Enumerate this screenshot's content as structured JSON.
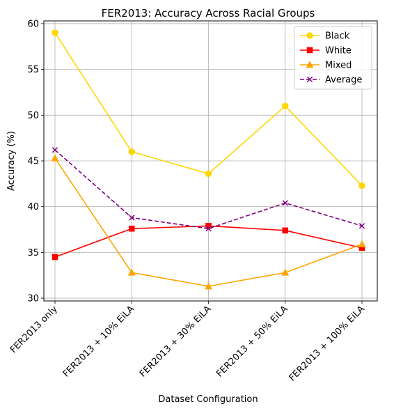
{
  "chart_data": {
    "type": "line",
    "title": "FER2013: Accuracy Across Racial Groups",
    "xlabel": "Dataset Configuration",
    "ylabel": "Accuracy (%)",
    "categories": [
      "FER2013 only",
      "FER2013 + 10% EiLA",
      "FER2013 + 30% EiLA",
      "FER2013 + 50% EiLA",
      "FER2013 + 100% EiLA"
    ],
    "ylim": [
      29.7,
      60.3
    ],
    "yticks": [
      30,
      35,
      40,
      45,
      50,
      55,
      60
    ],
    "grid": true,
    "legend_position": "top-right",
    "series": [
      {
        "name": "Black",
        "values": [
          59.0,
          46.0,
          43.6,
          51.0,
          42.3
        ],
        "color": "#FFD700",
        "marker": "circle",
        "linestyle": "solid"
      },
      {
        "name": "White",
        "values": [
          34.5,
          37.6,
          37.9,
          37.4,
          35.5
        ],
        "color": "#FF0000",
        "marker": "square",
        "linestyle": "solid"
      },
      {
        "name": "Mixed",
        "values": [
          45.3,
          32.8,
          31.3,
          32.8,
          35.9
        ],
        "color": "#FFA500",
        "marker": "triangle",
        "linestyle": "solid"
      },
      {
        "name": "Average",
        "values": [
          46.2,
          38.8,
          37.6,
          40.4,
          37.9
        ],
        "color": "#800080",
        "marker": "x",
        "linestyle": "dashed"
      }
    ]
  }
}
